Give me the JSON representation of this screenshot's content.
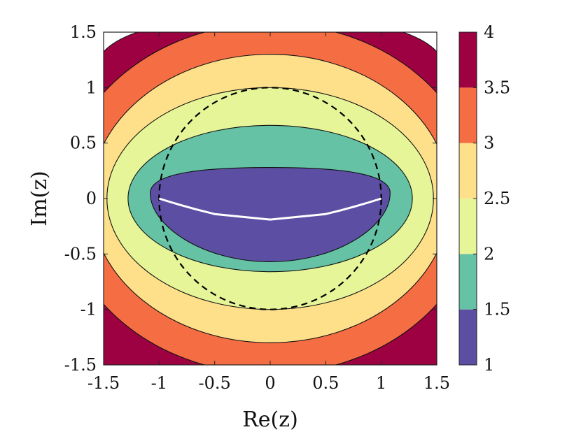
{
  "chart_data": {
    "type": "contourf",
    "xlabel": "Re(z)",
    "ylabel": "Im(z)",
    "xlim": [
      -1.5,
      1.5
    ],
    "ylim": [
      -1.5,
      1.5
    ],
    "xticks": [
      "-1.5",
      "-1",
      "-0.5",
      "0",
      "0.5",
      "1",
      "1.5"
    ],
    "yticks": [
      "1.5",
      "1",
      "0.5",
      "0",
      "-0.5",
      "-1",
      "-1.5"
    ],
    "colorbar": {
      "ticks": [
        "4",
        "3.5",
        "3",
        "2.5",
        "2",
        "1.5",
        "1"
      ],
      "levels": [
        {
          "from": 1.0,
          "to": 1.5,
          "color": "#5c4fa3"
        },
        {
          "from": 1.5,
          "to": 2.0,
          "color": "#66c2a5"
        },
        {
          "from": 2.0,
          "to": 2.5,
          "color": "#e6f598"
        },
        {
          "from": 2.5,
          "to": 3.0,
          "color": "#fee08b"
        },
        {
          "from": 3.0,
          "to": 3.5,
          "color": "#f46d43"
        },
        {
          "from": 3.5,
          "to": 4.0,
          "color": "#9e0142"
        }
      ]
    },
    "contours": [
      {
        "level": 3.5,
        "rx": 1.88,
        "ry": 1.58,
        "fill": "#f46d43"
      },
      {
        "level": 3.0,
        "rx": 1.62,
        "ry": 1.3,
        "fill": "#fee08b"
      },
      {
        "level": 2.5,
        "rx": 1.47,
        "ry": 1.0,
        "fill": "#e6f598"
      },
      {
        "level": 2.0,
        "rx": 1.28,
        "ry": 0.66,
        "fill": "#66c2a5"
      },
      {
        "level": 1.5,
        "x_left": -1.08,
        "x_right": 1.08,
        "y_top": 0.28,
        "y_bottom": -0.57,
        "fill": "#5c4fa3"
      }
    ],
    "outer_fill": "#9e0142",
    "unit_circle": {
      "radius": 1.0,
      "style": "dashed",
      "color": "#000000"
    },
    "white_curve": {
      "points": [
        [
          -1.0,
          0.0
        ],
        [
          -0.5,
          -0.14
        ],
        [
          0.0,
          -0.19
        ],
        [
          0.5,
          -0.14
        ],
        [
          1.0,
          0.0
        ]
      ],
      "color": "#ffffff"
    }
  }
}
